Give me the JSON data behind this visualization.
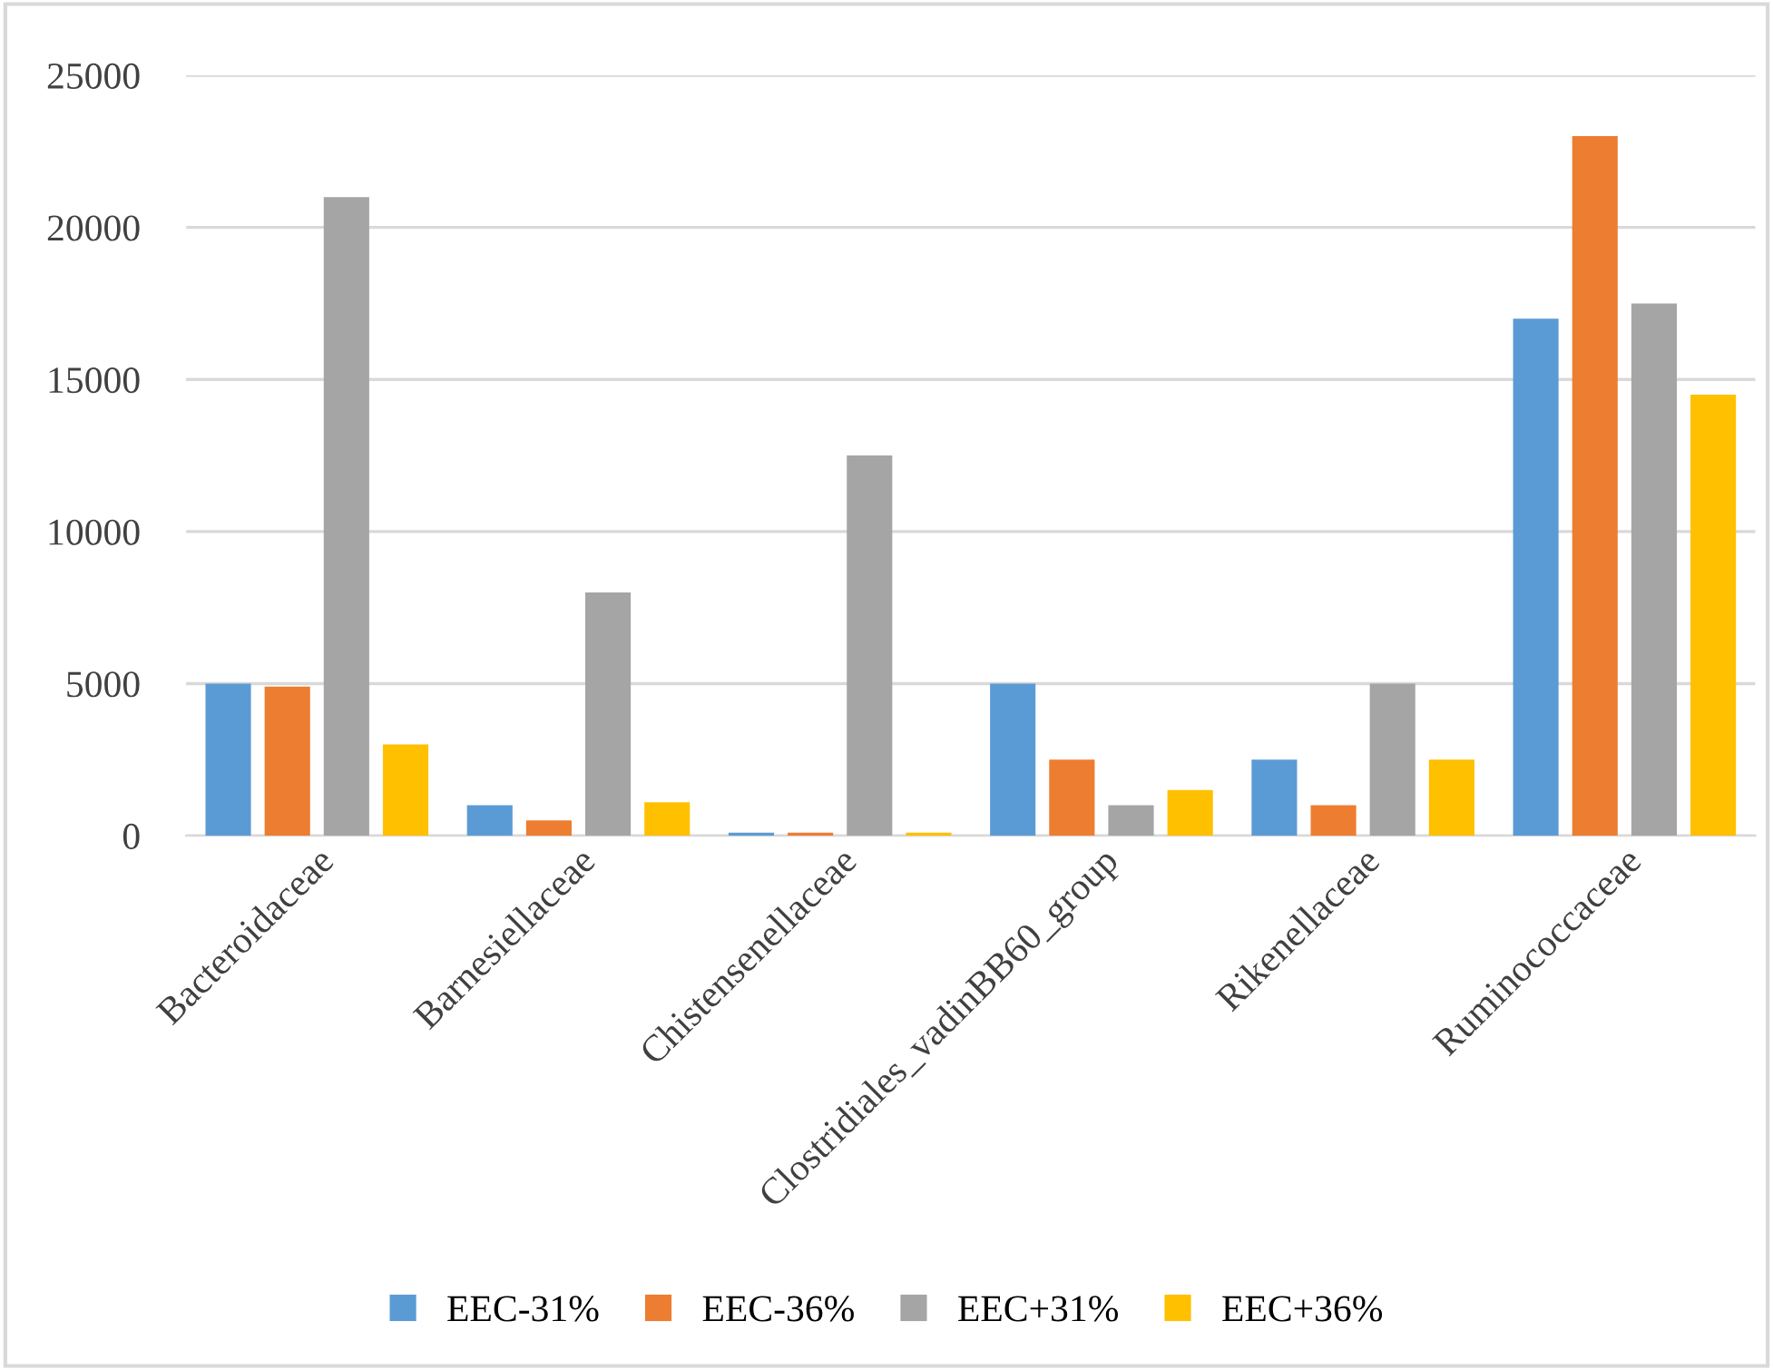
{
  "chart_data": {
    "type": "bar",
    "categories": [
      "Bacteroidaceae",
      "Barnesiellaceae",
      "Chistensenellaceae",
      "Clostridiales_vadinBB60_group",
      "Rikenellaceae",
      "Ruminococcaceae"
    ],
    "series": [
      {
        "name": "EEC-31%",
        "color": "#5b9bd5",
        "values": [
          5000,
          1000,
          100,
          5000,
          2500,
          17000
        ]
      },
      {
        "name": "EEC-36%",
        "color": "#ed7d31",
        "values": [
          4900,
          500,
          100,
          2500,
          1000,
          23000
        ]
      },
      {
        "name": "EEC+31%",
        "color": "#a5a5a5",
        "values": [
          21000,
          8000,
          12500,
          1000,
          5000,
          17500
        ]
      },
      {
        "name": "EEC+36%",
        "color": "#ffc000",
        "values": [
          3000,
          1100,
          100,
          1500,
          2500,
          14500
        ]
      }
    ],
    "ylim": [
      0,
      25000
    ],
    "yticks": [
      0,
      5000,
      10000,
      15000,
      20000,
      25000
    ],
    "grid": "y",
    "legend": "bottom"
  }
}
